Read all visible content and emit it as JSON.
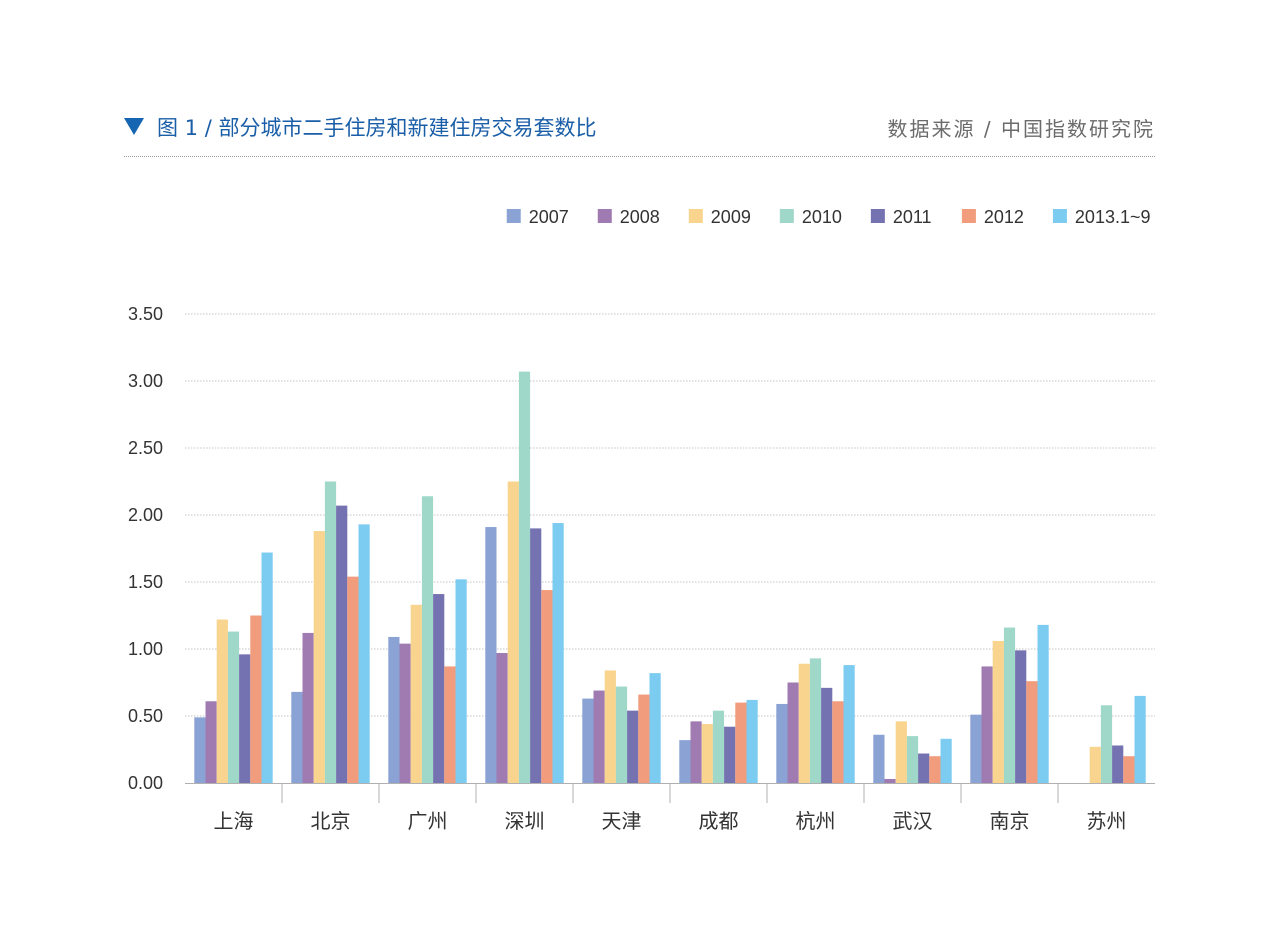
{
  "header": {
    "title": "图 1 / 部分城市二手住房和新建住房交易套数比",
    "source": "数据来源 / 中国指数研究院"
  },
  "chart_data": {
    "type": "bar",
    "title": "图 1 / 部分城市二手住房和新建住房交易套数比",
    "xlabel": "",
    "ylabel": "",
    "ylim": [
      0,
      3.5
    ],
    "yticks": [
      "0.00",
      "0.50",
      "1.00",
      "1.50",
      "2.00",
      "2.50",
      "3.00",
      "3.50"
    ],
    "grid": true,
    "legend_position": "top-right",
    "categories": [
      "上海",
      "北京",
      "广州",
      "深圳",
      "天津",
      "成都",
      "杭州",
      "武汉",
      "南京",
      "苏州"
    ],
    "series": [
      {
        "name": "2007",
        "color": "#8aa2d4",
        "values": [
          0.49,
          0.68,
          1.09,
          1.91,
          0.63,
          0.32,
          0.59,
          0.36,
          0.51,
          null
        ]
      },
      {
        "name": "2008",
        "color": "#a07bb2",
        "values": [
          0.61,
          1.12,
          1.04,
          0.97,
          0.69,
          0.46,
          0.75,
          0.03,
          0.87,
          null
        ]
      },
      {
        "name": "2009",
        "color": "#f8d48e",
        "values": [
          1.22,
          1.88,
          1.33,
          2.25,
          0.84,
          0.44,
          0.89,
          0.46,
          1.06,
          0.27
        ]
      },
      {
        "name": "2010",
        "color": "#9fd8c8",
        "values": [
          1.13,
          2.25,
          2.14,
          3.07,
          0.72,
          0.54,
          0.93,
          0.35,
          1.16,
          0.58
        ]
      },
      {
        "name": "2011",
        "color": "#7472b0",
        "values": [
          0.96,
          2.07,
          1.41,
          1.9,
          0.54,
          0.42,
          0.71,
          0.22,
          0.99,
          0.28
        ]
      },
      {
        "name": "2012",
        "color": "#f19c7c",
        "values": [
          1.25,
          1.54,
          0.87,
          1.44,
          0.66,
          0.6,
          0.61,
          0.2,
          0.76,
          0.2
        ]
      },
      {
        "name": "2013.1~9",
        "color": "#7ccbf0",
        "values": [
          1.72,
          1.93,
          1.52,
          1.94,
          0.82,
          0.62,
          0.88,
          0.33,
          1.18,
          0.65
        ]
      }
    ]
  }
}
